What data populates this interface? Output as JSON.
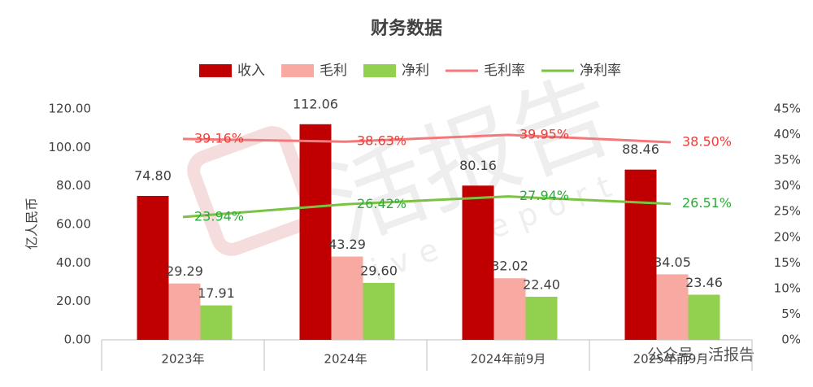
{
  "chart_data": {
    "type": "bar-line-combo",
    "title": "财务数据",
    "y_label": "亿人民币",
    "categories": [
      "2023年",
      "2024年",
      "2024年前9月",
      "2025年前9月"
    ],
    "series": [
      {
        "name": "收入",
        "type": "bar",
        "color": "#c00000",
        "values": [
          74.8,
          112.06,
          80.16,
          88.46
        ],
        "value_labels": [
          "74.80",
          "112.06",
          "80.16",
          "88.46"
        ]
      },
      {
        "name": "毛利",
        "type": "bar",
        "color": "#f8aaa2",
        "values": [
          29.29,
          43.29,
          32.02,
          34.05
        ],
        "value_labels": [
          "29.29",
          "43.29",
          "32.02",
          "34.05"
        ]
      },
      {
        "name": "净利",
        "type": "bar",
        "color": "#92d050",
        "values": [
          17.91,
          29.6,
          22.4,
          23.46
        ],
        "value_labels": [
          "17.91",
          "29.60",
          "22.40",
          "23.46"
        ]
      },
      {
        "name": "毛利率",
        "type": "line",
        "axis": "y2",
        "color": "#f4787a",
        "label_color": "#e8403c",
        "values": [
          39.16,
          38.63,
          39.95,
          38.5
        ],
        "value_labels": [
          "39.16%",
          "38.63%",
          "39.95%",
          "38.50%"
        ]
      },
      {
        "name": "净利率",
        "type": "line",
        "axis": "y2",
        "color": "#7cc242",
        "label_color": "#2eaa3a",
        "values": [
          23.94,
          26.42,
          27.94,
          26.51
        ],
        "value_labels": [
          "23.94%",
          "26.42%",
          "27.94%",
          "26.51%"
        ]
      }
    ],
    "ylim": [
      0,
      120
    ],
    "yticks": [
      {
        "value": 0,
        "label": "0.00"
      },
      {
        "value": 20,
        "label": "20.00"
      },
      {
        "value": 40,
        "label": "40.00"
      },
      {
        "value": 60,
        "label": "60.00"
      },
      {
        "value": 80,
        "label": "80.00"
      },
      {
        "value": 100,
        "label": "100.00"
      },
      {
        "value": 120,
        "label": "120.00"
      }
    ],
    "y2lim": [
      0,
      45
    ],
    "y2ticks": [
      {
        "value": 0,
        "label": "0%"
      },
      {
        "value": 5,
        "label": "5%"
      },
      {
        "value": 10,
        "label": "10%"
      },
      {
        "value": 15,
        "label": "15%"
      },
      {
        "value": 20,
        "label": "20%"
      },
      {
        "value": 25,
        "label": "25%"
      },
      {
        "value": 30,
        "label": "30%"
      },
      {
        "value": 35,
        "label": "35%"
      },
      {
        "value": 40,
        "label": "40%"
      },
      {
        "value": 45,
        "label": "45%"
      }
    ],
    "grid": false,
    "legend": "top"
  },
  "watermark": {
    "logo": "活报告",
    "subtitle": "live report"
  },
  "footer": "公众号 · 活报告"
}
